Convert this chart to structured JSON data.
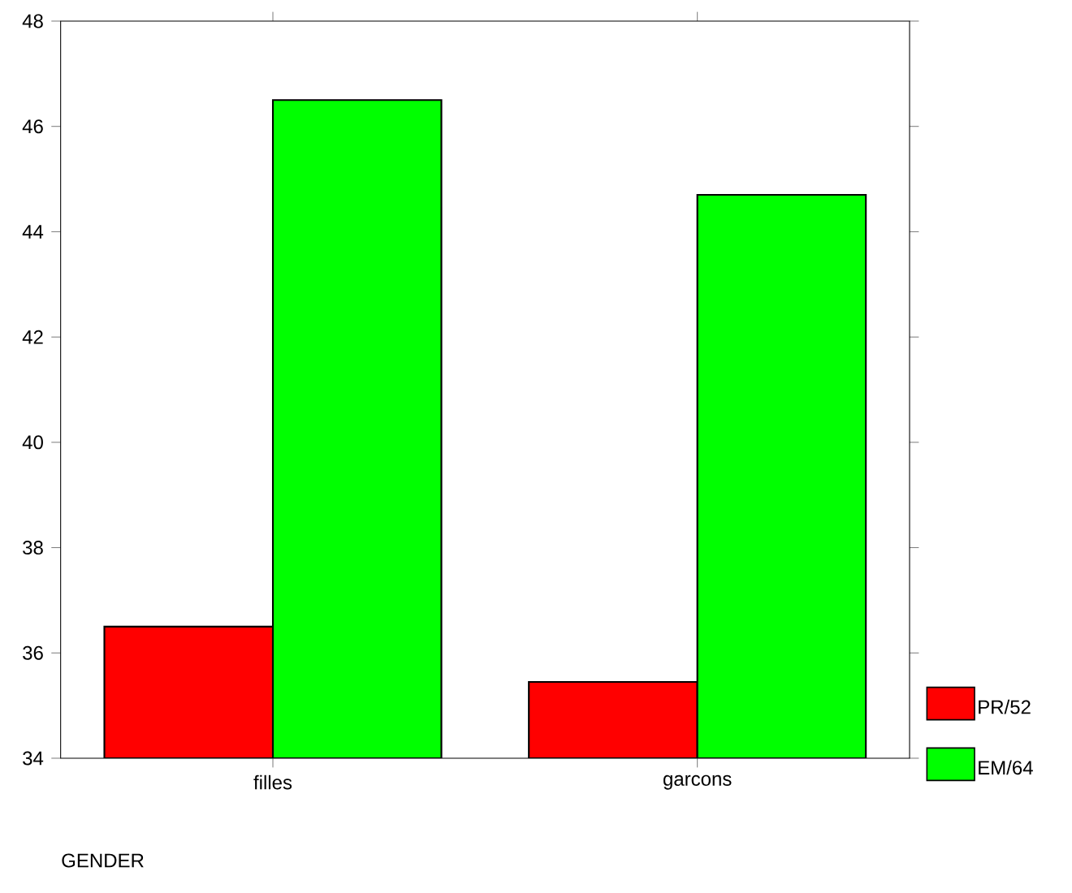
{
  "chart_data": {
    "type": "bar",
    "xlabel": "GENDER",
    "categories": [
      "filles",
      "garcons"
    ],
    "series": [
      {
        "name": "PR/52",
        "color": "#ff0000",
        "values": [
          36.5,
          35.45
        ]
      },
      {
        "name": "EM/64",
        "color": "#00ff00",
        "values": [
          46.5,
          44.7
        ]
      }
    ],
    "ylim": [
      34,
      48
    ],
    "yticks": [
      34,
      36,
      38,
      40,
      42,
      44,
      46,
      48
    ],
    "legend": "bottom right",
    "grid": false
  }
}
